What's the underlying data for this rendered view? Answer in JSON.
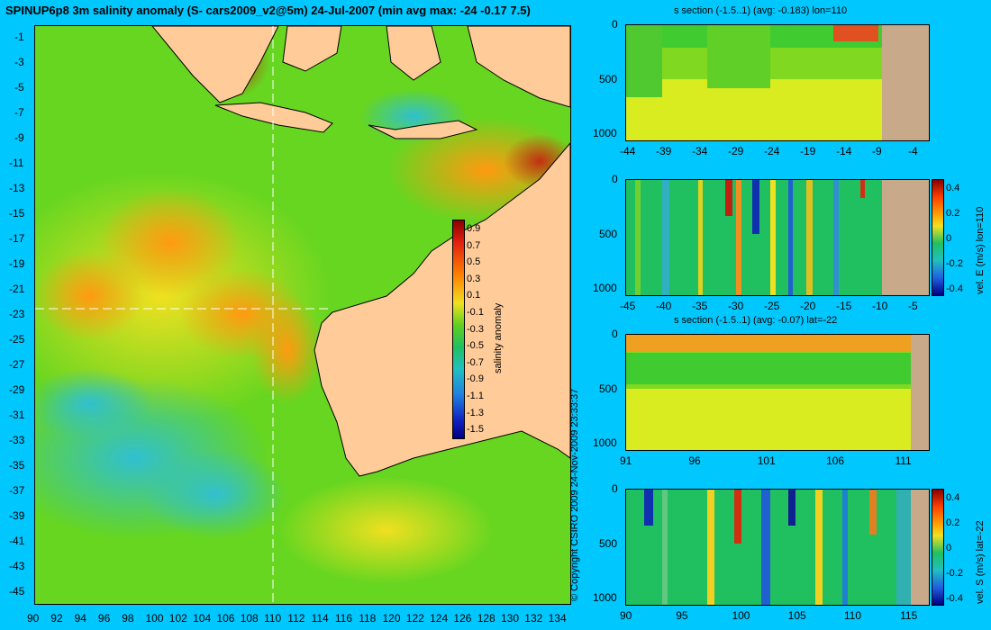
{
  "title": "SPINUP6p8 3m salinity anomaly (S- cars2009_v2@5m) 24-Jul-2007 (min avg max: -24 -0.17 7.5)",
  "copyright": "© Copyright CSIRO 2009   24-Nov-2009 23:33:37",
  "colors": {
    "background": "#00c8ff",
    "land": "#ffcc99",
    "section_land": "#c8a98a"
  },
  "map": {
    "lat_ticks": [
      "-1",
      "-3",
      "-5",
      "-7",
      "-9",
      "-11",
      "-13",
      "-15",
      "-17",
      "-19",
      "-21",
      "-23",
      "-25",
      "-27",
      "-29",
      "-31",
      "-33",
      "-35",
      "-37",
      "-39",
      "-41",
      "-43",
      "-45"
    ],
    "lon_ticks": [
      "90",
      "92",
      "94",
      "96",
      "98",
      "100",
      "102",
      "104",
      "106",
      "108",
      "110",
      "112",
      "114",
      "116",
      "118",
      "120",
      "122",
      "124",
      "126",
      "128",
      "130",
      "132",
      "134"
    ],
    "section_lon": 110,
    "section_lat": -22,
    "colorbar": {
      "label": "salinity anomaly",
      "ticks": [
        "0.9",
        "0.7",
        "0.5",
        "0.3",
        "0.1",
        "-0.1",
        "-0.3",
        "-0.5",
        "-0.7",
        "-0.9",
        "-1.1",
        "-1.3",
        "-1.5"
      ]
    }
  },
  "sections": [
    {
      "title": "s section (-1.5..1) (avg: -0.183) lon=110",
      "x_ticks": [
        "-44",
        "-39",
        "-34",
        "-29",
        "-24",
        "-19",
        "-14",
        "-9",
        "-4"
      ],
      "y_ticks": [
        "0",
        "500",
        "1000"
      ]
    },
    {
      "title": "",
      "x_ticks": [
        "-45",
        "-40",
        "-35",
        "-30",
        "-25",
        "-20",
        "-15",
        "-10",
        "-5"
      ],
      "y_ticks": [
        "0",
        "500",
        "1000"
      ],
      "colorbar": {
        "label": "vel. E (m/s) lon=110",
        "ticks": [
          "0.4",
          "0.2",
          "0",
          "-0.2",
          "-0.4"
        ]
      }
    },
    {
      "title": "s section (-1.5..1) (avg: -0.07) lat=-22",
      "x_ticks": [
        "91",
        "96",
        "101",
        "106",
        "111"
      ],
      "y_ticks": [
        "0",
        "500",
        "1000"
      ]
    },
    {
      "title": "",
      "x_ticks": [
        "90",
        "95",
        "100",
        "105",
        "110",
        "115"
      ],
      "y_ticks": [
        "0",
        "500",
        "1000"
      ],
      "colorbar": {
        "label": "vel. S (m/s) lat=-22",
        "ticks": [
          "0.4",
          "0.2",
          "0",
          "-0.2",
          "-0.4"
        ]
      }
    }
  ]
}
